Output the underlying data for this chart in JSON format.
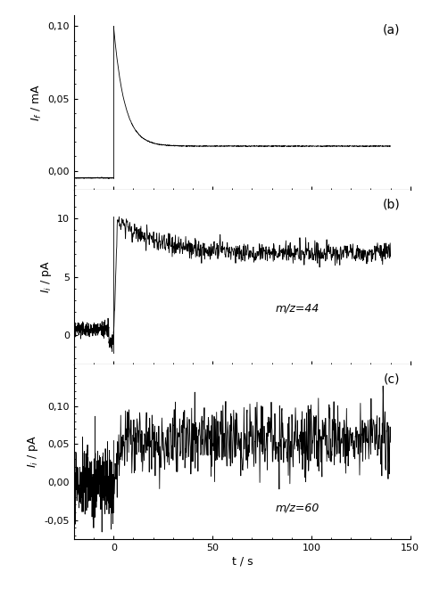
{
  "title_a": "(a)",
  "title_b": "(b)",
  "title_c": "(c)",
  "xlabel": "t / s",
  "ylabel_a": "I_f / mA",
  "ylabel_b": "I_i / pA",
  "ylabel_c": "I_i / pA",
  "xlim": [
    -20,
    150
  ],
  "xticks": [
    0,
    50,
    100,
    150
  ],
  "ylim_a": [
    -0.013,
    0.108
  ],
  "yticks_a": [
    0.0,
    0.05,
    0.1
  ],
  "ytick_labels_a": [
    "0,00",
    "0,05",
    "0,10"
  ],
  "ylim_b": [
    -2.5,
    12.5
  ],
  "yticks_b": [
    0,
    5,
    10
  ],
  "ytick_labels_b": [
    "0",
    "5",
    "10"
  ],
  "ylim_c": [
    -0.075,
    0.155
  ],
  "yticks_c": [
    -0.05,
    0.0,
    0.05,
    0.1
  ],
  "ytick_labels_c": [
    "-0,05",
    "0,00",
    "0,05",
    "0,10"
  ],
  "annotation_b": "m/z=44",
  "annotation_c": "m/z=60",
  "background_color": "#ffffff",
  "line_color": "#000000",
  "seed": 42
}
